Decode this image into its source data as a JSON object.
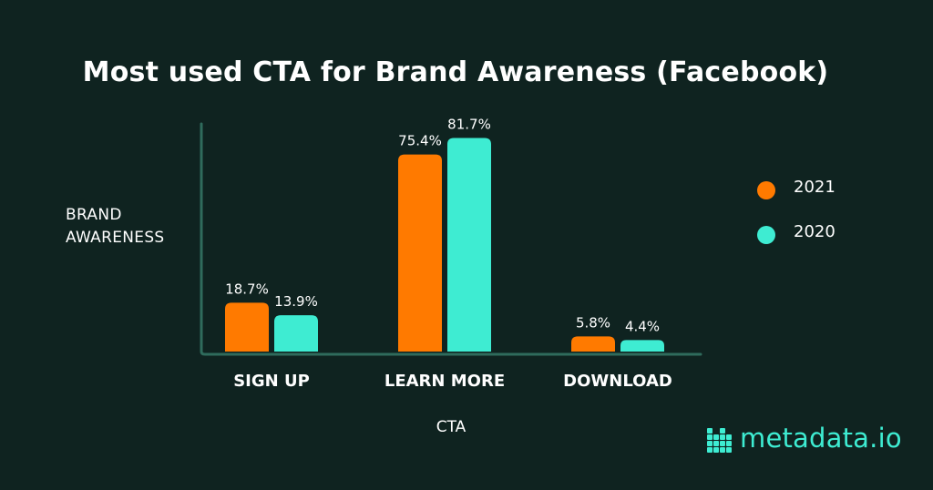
{
  "chart_data": {
    "type": "bar",
    "title": "Most used CTA for Brand Awareness (Facebook)",
    "xlabel": "CTA",
    "ylabel": "BRAND AWARENESS",
    "categories": [
      "SIGN UP",
      "LEARN MORE",
      "DOWNLOAD"
    ],
    "series": [
      {
        "name": "2021",
        "values": [
          18.7,
          75.4,
          5.8
        ],
        "labels": [
          "18.7%",
          "75.4%",
          "5.8%"
        ],
        "color": "#ff7a00"
      },
      {
        "name": "2020",
        "values": [
          13.9,
          81.7,
          4.4
        ],
        "labels": [
          "13.9%",
          "81.7%",
          "4.4%"
        ],
        "color": "#3eecd2"
      }
    ],
    "ylim": [
      0,
      100
    ],
    "grid": false,
    "legend": "right"
  },
  "brand": {
    "name": "metadata.io",
    "color": "#3eecd2"
  },
  "colors": {
    "background": "#0f2320",
    "axis": "#2f6b5c"
  }
}
